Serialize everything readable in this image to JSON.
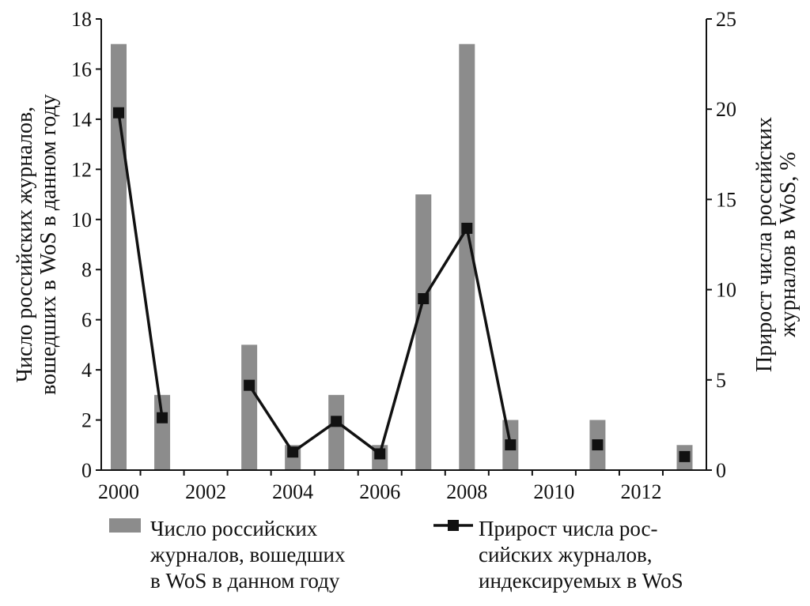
{
  "chart_data": {
    "type": "bar",
    "title": "",
    "x": [
      2000,
      2001,
      2002,
      2003,
      2004,
      2005,
      2006,
      2007,
      2008,
      2009,
      2010,
      2011,
      2012,
      2013
    ],
    "xlim": [
      1999.6,
      2013.5
    ],
    "xticks": [
      "2000",
      "2002",
      "2004",
      "2006",
      "2008",
      "2010",
      "2012"
    ],
    "xtick_values": [
      2000,
      2002,
      2004,
      2006,
      2008,
      2010,
      2012
    ],
    "ylabel_left": [
      "Число российских журналов,",
      "вошедших в WoS в данном году"
    ],
    "ylabel_right": [
      "Прирост числа российских",
      "журналов в WoS, %"
    ],
    "ylim_left": [
      0,
      18
    ],
    "ylim_right": [
      0,
      25
    ],
    "yticks_left": [
      "0",
      "2",
      "4",
      "6",
      "8",
      "10",
      "12",
      "14",
      "16",
      "18"
    ],
    "yticks_right": [
      "0",
      "5",
      "10",
      "15",
      "20",
      "25"
    ],
    "grid": false,
    "legend_position": "bottom",
    "series": [
      {
        "name": [
          "Число российских",
          "журналов, вошедших",
          "в WoS в данном году"
        ],
        "type": "bar",
        "axis": "left",
        "color": "#8c8c8c",
        "points": [
          {
            "x": 2000,
            "y": 17
          },
          {
            "x": 2001,
            "y": 3
          },
          {
            "x": 2003,
            "y": 5
          },
          {
            "x": 2004,
            "y": 1
          },
          {
            "x": 2005,
            "y": 3
          },
          {
            "x": 2006,
            "y": 1
          },
          {
            "x": 2007,
            "y": 11
          },
          {
            "x": 2008,
            "y": 17
          },
          {
            "x": 2009,
            "y": 2
          },
          {
            "x": 2011,
            "y": 2
          },
          {
            "x": 2013,
            "y": 1
          }
        ]
      },
      {
        "name": [
          "Прирост числа рос-",
          "сийских журналов,",
          "индексируемых в WoS"
        ],
        "type": "line",
        "axis": "right",
        "color": "#111111",
        "line_segments": [
          [
            {
              "x": 2000,
              "y": 19.8
            },
            {
              "x": 2001,
              "y": 2.9
            }
          ],
          [
            {
              "x": 2003,
              "y": 4.7
            },
            {
              "x": 2004,
              "y": 1.0
            },
            {
              "x": 2005,
              "y": 2.7
            },
            {
              "x": 2006,
              "y": 0.9
            },
            {
              "x": 2007,
              "y": 9.5
            },
            {
              "x": 2008,
              "y": 13.4
            },
            {
              "x": 2009,
              "y": 1.4
            }
          ]
        ],
        "points": [
          {
            "x": 2000,
            "y": 19.8
          },
          {
            "x": 2001,
            "y": 2.9
          },
          {
            "x": 2003,
            "y": 4.7
          },
          {
            "x": 2004,
            "y": 1.0
          },
          {
            "x": 2005,
            "y": 2.7
          },
          {
            "x": 2006,
            "y": 0.9
          },
          {
            "x": 2007,
            "y": 9.5
          },
          {
            "x": 2008,
            "y": 13.4
          },
          {
            "x": 2009,
            "y": 1.4
          },
          {
            "x": 2011,
            "y": 1.4
          },
          {
            "x": 2013,
            "y": 0.75
          }
        ]
      }
    ]
  }
}
